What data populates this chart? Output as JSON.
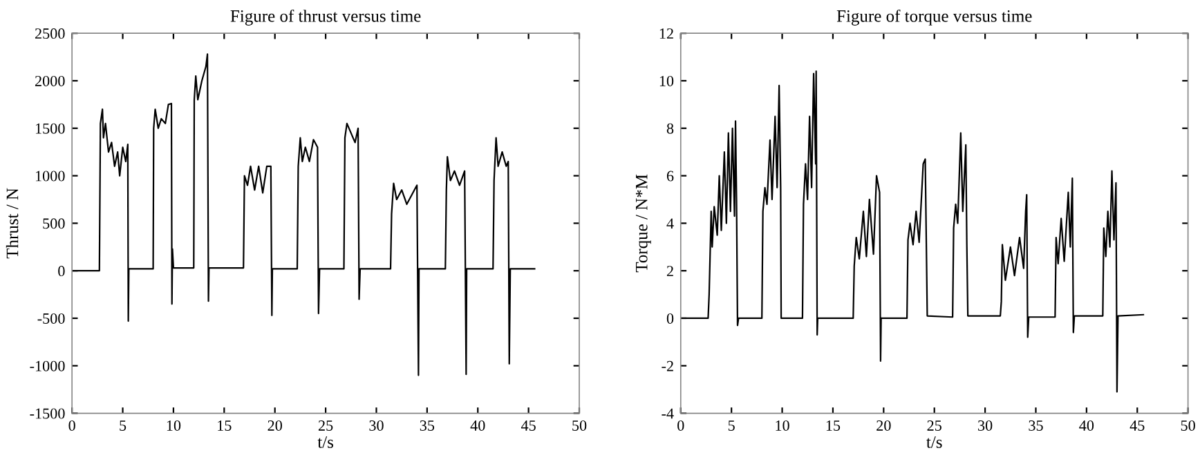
{
  "chart_data": [
    {
      "type": "line",
      "title": "Figure of thrust versus time",
      "xlabel": "t/s",
      "ylabel": "Thrust / N",
      "grid": false,
      "marker": "none",
      "line_style": "solid",
      "xlim": [
        0,
        50
      ],
      "xticks": [
        0,
        5,
        10,
        15,
        20,
        25,
        30,
        35,
        40,
        45,
        50
      ],
      "ylim": [
        -1500,
        2500
      ],
      "yticks": [
        -1500,
        -1000,
        -500,
        0,
        500,
        1000,
        1500,
        2000,
        2500
      ],
      "series": [
        {
          "color": "#000000",
          "x": [
            0,
            2.7,
            2.8,
            3.0,
            3.1,
            3.3,
            3.6,
            3.9,
            4.2,
            4.5,
            4.7,
            5.0,
            5.3,
            5.5,
            5.55,
            5.6,
            8.0,
            8.05,
            8.2,
            8.5,
            8.8,
            9.2,
            9.5,
            9.8,
            9.85,
            9.9,
            10.0,
            12.0,
            12.05,
            12.2,
            12.4,
            12.8,
            13.2,
            13.35,
            13.45,
            13.5,
            16.9,
            17.0,
            17.3,
            17.6,
            18.0,
            18.4,
            18.8,
            19.2,
            19.6,
            19.7,
            19.75,
            22.2,
            22.3,
            22.5,
            22.7,
            23.0,
            23.4,
            23.8,
            24.2,
            24.3,
            24.4,
            26.8,
            26.9,
            27.1,
            27.5,
            27.9,
            28.2,
            28.3,
            28.4,
            31.4,
            31.5,
            31.7,
            32.0,
            32.5,
            33.0,
            33.5,
            34.0,
            34.15,
            34.2,
            36.8,
            36.9,
            37.0,
            37.3,
            37.7,
            38.2,
            38.7,
            38.85,
            38.9,
            41.5,
            41.6,
            41.8,
            42.0,
            42.4,
            42.8,
            43.0,
            43.1,
            43.2,
            45.6
          ],
          "values": [
            0,
            0,
            1550,
            1700,
            1400,
            1550,
            1250,
            1350,
            1100,
            1250,
            1000,
            1300,
            1150,
            1330,
            -530,
            20,
            20,
            1500,
            1700,
            1500,
            1600,
            1550,
            1750,
            1760,
            -350,
            230,
            30,
            30,
            1800,
            2050,
            1800,
            2000,
            2150,
            2280,
            -320,
            30,
            30,
            1000,
            900,
            1100,
            850,
            1100,
            820,
            1100,
            1100,
            -470,
            20,
            20,
            1100,
            1400,
            1150,
            1300,
            1150,
            1380,
            1300,
            -450,
            20,
            20,
            1400,
            1550,
            1450,
            1350,
            1500,
            -300,
            20,
            20,
            600,
            920,
            750,
            850,
            700,
            800,
            900,
            -1100,
            20,
            20,
            850,
            1200,
            950,
            1050,
            900,
            1050,
            -1090,
            20,
            20,
            950,
            1400,
            1100,
            1250,
            1100,
            1150,
            -980,
            20,
            20
          ]
        }
      ]
    },
    {
      "type": "line",
      "title": "Figure of torque versus time",
      "xlabel": "t/s",
      "ylabel": "Torque / N*M",
      "grid": false,
      "marker": "none",
      "line_style": "solid",
      "xlim": [
        0,
        50
      ],
      "xticks": [
        0,
        5,
        10,
        15,
        20,
        25,
        30,
        35,
        40,
        45,
        50
      ],
      "ylim": [
        -4,
        12
      ],
      "yticks": [
        -4,
        -2,
        0,
        2,
        4,
        6,
        8,
        10,
        12
      ],
      "series": [
        {
          "color": "#000000",
          "x": [
            0,
            2.7,
            2.8,
            3.0,
            3.1,
            3.3,
            3.6,
            3.8,
            4.0,
            4.3,
            4.5,
            4.7,
            4.9,
            5.1,
            5.3,
            5.4,
            5.5,
            5.6,
            5.7,
            8.0,
            8.1,
            8.3,
            8.5,
            8.8,
            9.0,
            9.3,
            9.5,
            9.7,
            9.85,
            9.9,
            12.0,
            12.1,
            12.3,
            12.5,
            12.7,
            12.9,
            13.1,
            13.3,
            13.35,
            13.45,
            13.5,
            17.0,
            17.1,
            17.3,
            17.6,
            18.0,
            18.3,
            18.6,
            19.0,
            19.3,
            19.6,
            19.7,
            19.75,
            22.3,
            22.4,
            22.6,
            22.9,
            23.2,
            23.5,
            23.9,
            24.1,
            24.3,
            26.8,
            26.9,
            27.1,
            27.3,
            27.6,
            27.8,
            28.1,
            28.2,
            28.3,
            31.5,
            31.6,
            31.7,
            32.0,
            32.5,
            32.9,
            33.4,
            33.8,
            34.0,
            34.1,
            34.2,
            34.3,
            36.9,
            37.0,
            37.2,
            37.5,
            37.8,
            38.2,
            38.4,
            38.6,
            38.7,
            38.8,
            41.6,
            41.7,
            41.9,
            42.1,
            42.3,
            42.5,
            42.7,
            42.9,
            43.0,
            43.1,
            45.6
          ],
          "values": [
            0,
            0,
            1,
            4.5,
            3.0,
            4.7,
            3.5,
            6,
            3.7,
            7,
            4.0,
            7.8,
            4.5,
            8.0,
            4.3,
            8.3,
            5,
            -0.3,
            0,
            0,
            4.5,
            5.5,
            4.8,
            7.5,
            5.0,
            8.5,
            5.5,
            9.8,
            5.5,
            0,
            0,
            4.8,
            6.5,
            5.0,
            8.5,
            5.5,
            10.3,
            6.5,
            10.4,
            -0.7,
            0,
            0,
            2.2,
            3.4,
            2.5,
            4.5,
            2.6,
            5.0,
            2.7,
            6.0,
            5.3,
            -1.8,
            0,
            0,
            3.3,
            4.0,
            3.1,
            4.5,
            3.2,
            6.5,
            6.7,
            0.1,
            0.05,
            3.8,
            4.8,
            4.0,
            7.8,
            4.5,
            7.3,
            3.1,
            0.1,
            0.1,
            0.7,
            3.1,
            1.6,
            3.0,
            1.8,
            3.4,
            2.1,
            4.5,
            5.2,
            -0.8,
            0.05,
            0.05,
            3.4,
            2.3,
            4.2,
            2.4,
            5.3,
            3.0,
            5.9,
            -0.6,
            0.1,
            0.1,
            3.8,
            2.6,
            4.5,
            3.0,
            6.2,
            3.3,
            5.7,
            -3.1,
            0.1,
            0.15
          ]
        }
      ]
    }
  ]
}
